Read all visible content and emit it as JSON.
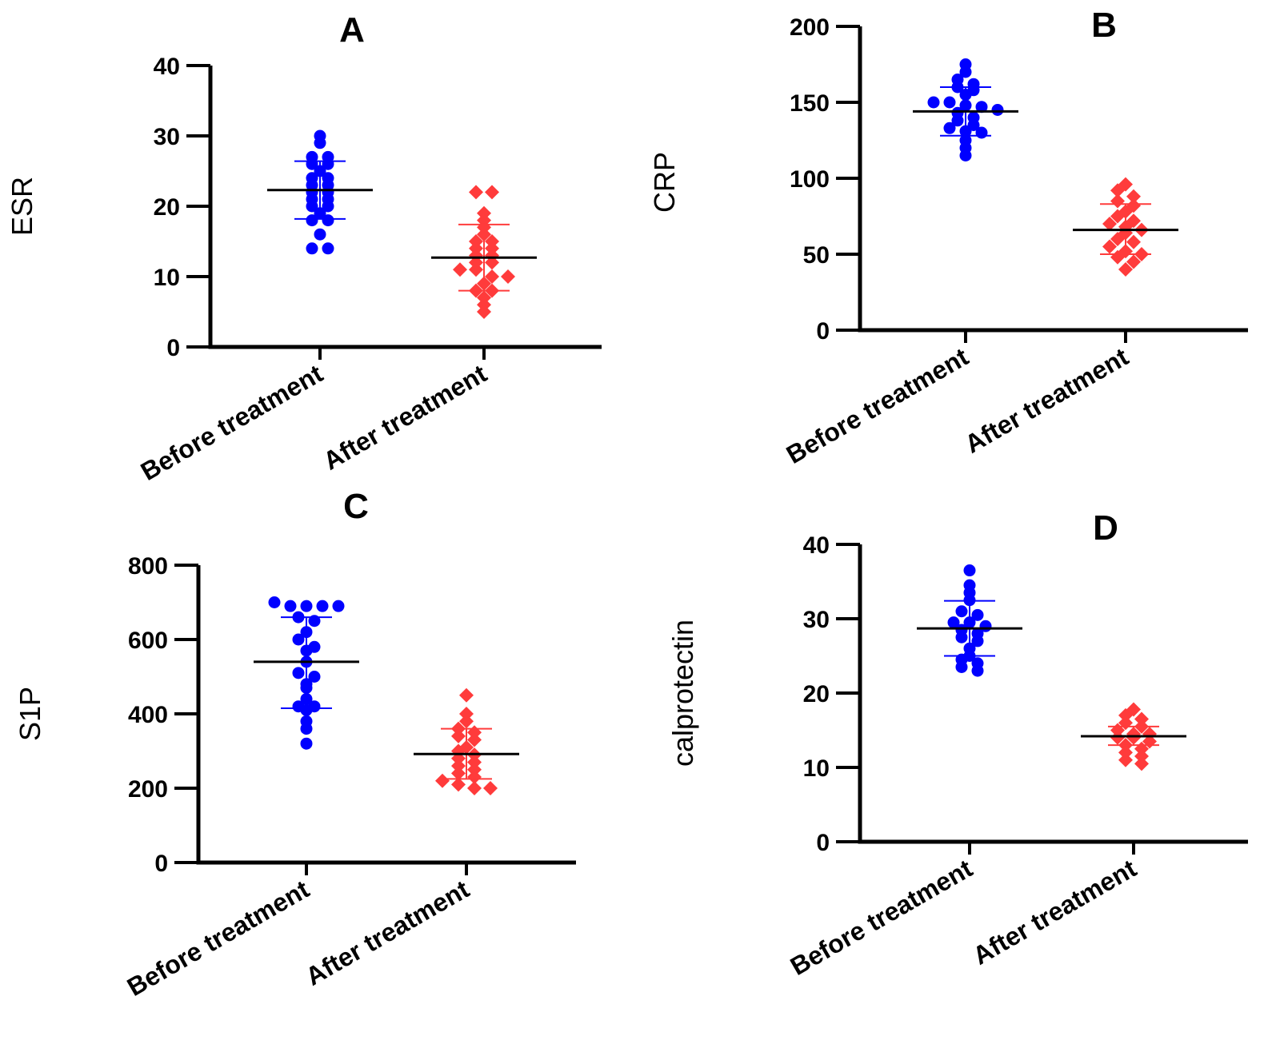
{
  "colors": {
    "before": "#0000ff",
    "after": "#ff3b3b"
  },
  "chart_data": [
    {
      "type": "scatter",
      "panel": "A",
      "title": "A",
      "ylabel": "ESR",
      "xlabel": "",
      "ylim": [
        0,
        40
      ],
      "yticks": [
        0,
        10,
        20,
        30,
        40
      ],
      "categories": [
        "Before treatment",
        "After treatment"
      ],
      "series": [
        {
          "name": "Before treatment",
          "marker": "circle",
          "mean": 22.3,
          "sd_low": 18.2,
          "sd_high": 26.4,
          "values": [
            30,
            29,
            27,
            27,
            26,
            26,
            25,
            24,
            24,
            23,
            23,
            22,
            22,
            21,
            21,
            20,
            20,
            19,
            18,
            18,
            16,
            14,
            14
          ]
        },
        {
          "name": "After treatment",
          "marker": "diamond",
          "mean": 12.7,
          "sd_low": 8.0,
          "sd_high": 17.4,
          "values": [
            22,
            22,
            19,
            18,
            17,
            16,
            15,
            15,
            14,
            14,
            13,
            13,
            12,
            12,
            11,
            11,
            10,
            10,
            9,
            8,
            8,
            7,
            6,
            5
          ]
        }
      ]
    },
    {
      "type": "scatter",
      "panel": "B",
      "title": "B",
      "ylabel": "CRP",
      "xlabel": "",
      "ylim": [
        0,
        200
      ],
      "yticks": [
        0,
        50,
        100,
        150,
        200
      ],
      "categories": [
        "Before treatment",
        "After treatment"
      ],
      "series": [
        {
          "name": "Before treatment",
          "marker": "circle",
          "mean": 144,
          "sd_low": 128,
          "sd_high": 160,
          "values": [
            175,
            170,
            165,
            162,
            160,
            158,
            155,
            150,
            150,
            148,
            147,
            145,
            143,
            140,
            138,
            135,
            133,
            131,
            130,
            125,
            120,
            115
          ]
        },
        {
          "name": "After treatment",
          "marker": "diamond",
          "mean": 66,
          "sd_low": 50,
          "sd_high": 83,
          "values": [
            96,
            92,
            88,
            85,
            82,
            78,
            75,
            72,
            70,
            68,
            66,
            64,
            60,
            58,
            55,
            52,
            50,
            48,
            45,
            40
          ]
        }
      ]
    },
    {
      "type": "scatter",
      "panel": "C",
      "title": "C",
      "ylabel": "S1P",
      "xlabel": "",
      "ylim": [
        0,
        800
      ],
      "yticks": [
        0,
        200,
        400,
        600,
        800
      ],
      "categories": [
        "Before treatment",
        "After treatment"
      ],
      "series": [
        {
          "name": "Before treatment",
          "marker": "circle",
          "mean": 540,
          "sd_low": 415,
          "sd_high": 660,
          "values": [
            700,
            690,
            690,
            690,
            690,
            660,
            650,
            620,
            600,
            580,
            570,
            540,
            510,
            500,
            480,
            470,
            440,
            420,
            420,
            410,
            380,
            360,
            320
          ]
        },
        {
          "name": "After treatment",
          "marker": "diamond",
          "mean": 292,
          "sd_low": 225,
          "sd_high": 360,
          "values": [
            450,
            400,
            380,
            360,
            350,
            340,
            330,
            310,
            300,
            290,
            280,
            270,
            260,
            250,
            240,
            230,
            220,
            210,
            200,
            200
          ]
        }
      ]
    },
    {
      "type": "scatter",
      "panel": "D",
      "title": "D",
      "ylabel": "calprotectin",
      "xlabel": "",
      "ylim": [
        0,
        40
      ],
      "yticks": [
        0,
        10,
        20,
        30,
        40
      ],
      "categories": [
        "Before treatment",
        "After treatment"
      ],
      "series": [
        {
          "name": "Before treatment",
          "marker": "circle",
          "mean": 28.7,
          "sd_low": 25.0,
          "sd_high": 32.4,
          "values": [
            36.5,
            34.5,
            33.5,
            32.5,
            31,
            30.5,
            29.5,
            29.5,
            29,
            28.5,
            28,
            27.5,
            27,
            26,
            25,
            24.5,
            24,
            23.5,
            23
          ]
        },
        {
          "name": "After treatment",
          "marker": "diamond",
          "mean": 14.2,
          "sd_low": 13.0,
          "sd_high": 15.5,
          "values": [
            17.8,
            17,
            16.5,
            16,
            15.5,
            15,
            14.5,
            14.5,
            14,
            14,
            13.5,
            13,
            12.5,
            12,
            11.5,
            11,
            10.5
          ]
        }
      ]
    }
  ]
}
